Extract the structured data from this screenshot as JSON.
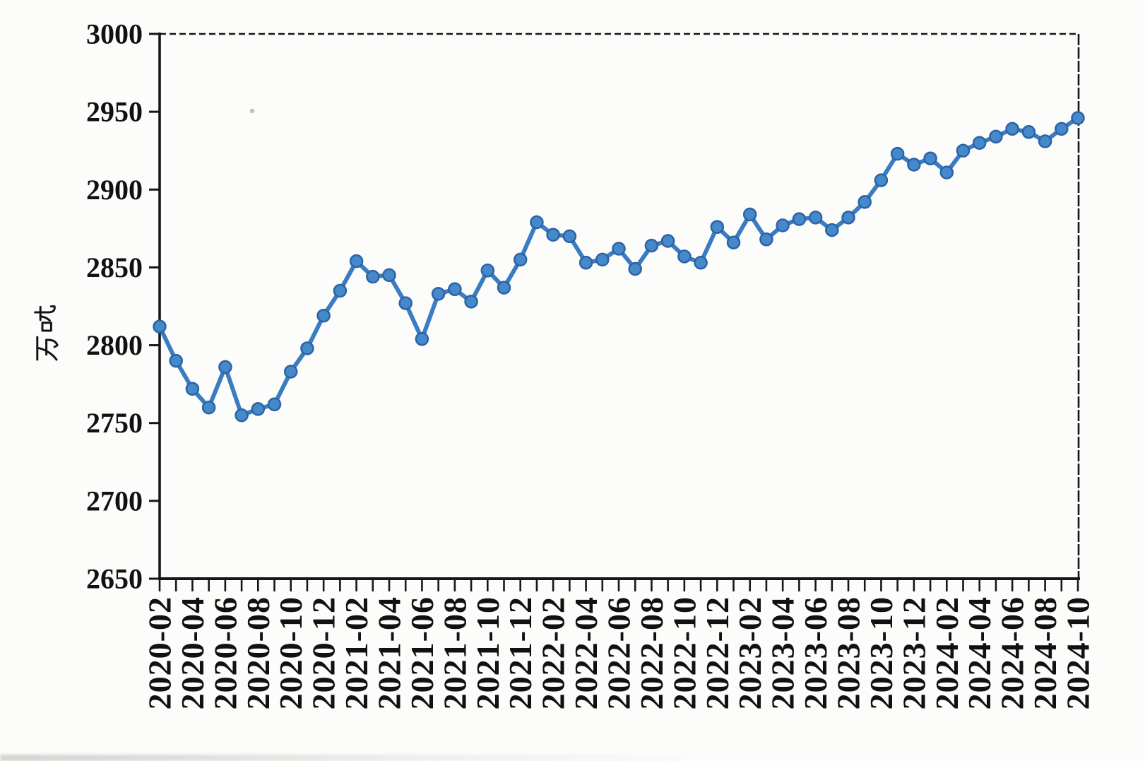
{
  "chart_data": {
    "type": "line",
    "ylabel": "万吨",
    "ylim": [
      2650,
      3000
    ],
    "yticks": [
      2650,
      2700,
      2750,
      2800,
      2850,
      2900,
      2950,
      3000
    ],
    "xtick_every": 2,
    "xtick_labels": [
      "2020-02",
      "2020-04",
      "2020-06",
      "2020-08",
      "2020-10",
      "2020-12",
      "2021-02",
      "2021-04",
      "2021-06",
      "2021-08",
      "2021-10",
      "2021-12",
      "2022-02",
      "2022-04",
      "2022-06",
      "2022-08",
      "2022-10",
      "2022-12",
      "2023-02",
      "2023-04",
      "2023-06",
      "2023-08",
      "2023-10",
      "2023-12",
      "2024-02",
      "2024-04",
      "2024-06",
      "2024-08",
      "2024-10"
    ],
    "grid": false,
    "legend": false,
    "x": [
      "2020-02",
      "2020-03",
      "2020-04",
      "2020-05",
      "2020-06",
      "2020-07",
      "2020-08",
      "2020-09",
      "2020-10",
      "2020-11",
      "2020-12",
      "2021-01",
      "2021-02",
      "2021-03",
      "2021-04",
      "2021-05",
      "2021-06",
      "2021-07",
      "2021-08",
      "2021-09",
      "2021-10",
      "2021-11",
      "2021-12",
      "2022-01",
      "2022-02",
      "2022-03",
      "2022-04",
      "2022-05",
      "2022-06",
      "2022-07",
      "2022-08",
      "2022-09",
      "2022-10",
      "2022-11",
      "2022-12",
      "2023-01",
      "2023-02",
      "2023-03",
      "2023-04",
      "2023-05",
      "2023-06",
      "2023-07",
      "2023-08",
      "2023-09",
      "2023-10",
      "2023-11",
      "2023-12",
      "2024-01",
      "2024-02",
      "2024-03",
      "2024-04",
      "2024-05",
      "2024-06",
      "2024-07",
      "2024-08",
      "2024-09",
      "2024-10"
    ],
    "values": [
      2812,
      2790,
      2772,
      2760,
      2786,
      2755,
      2759,
      2762,
      2783,
      2798,
      2819,
      2835,
      2854,
      2844,
      2845,
      2827,
      2804,
      2833,
      2836,
      2828,
      2848,
      2837,
      2855,
      2879,
      2871,
      2870,
      2853,
      2855,
      2862,
      2849,
      2864,
      2867,
      2857,
      2853,
      2876,
      2866,
      2884,
      2868,
      2877,
      2881,
      2882,
      2874,
      2882,
      2892,
      2906,
      2923,
      2916,
      2920,
      2911,
      2925,
      2930,
      2934,
      2939,
      2937,
      2931,
      2939,
      2946
    ],
    "colors": {
      "line": "#3a7cc2",
      "marker_fill": "#4589cb",
      "marker_stroke": "#2b63a5",
      "axis": "#161616",
      "text": "#111111",
      "background": "#fcfcfa"
    }
  }
}
